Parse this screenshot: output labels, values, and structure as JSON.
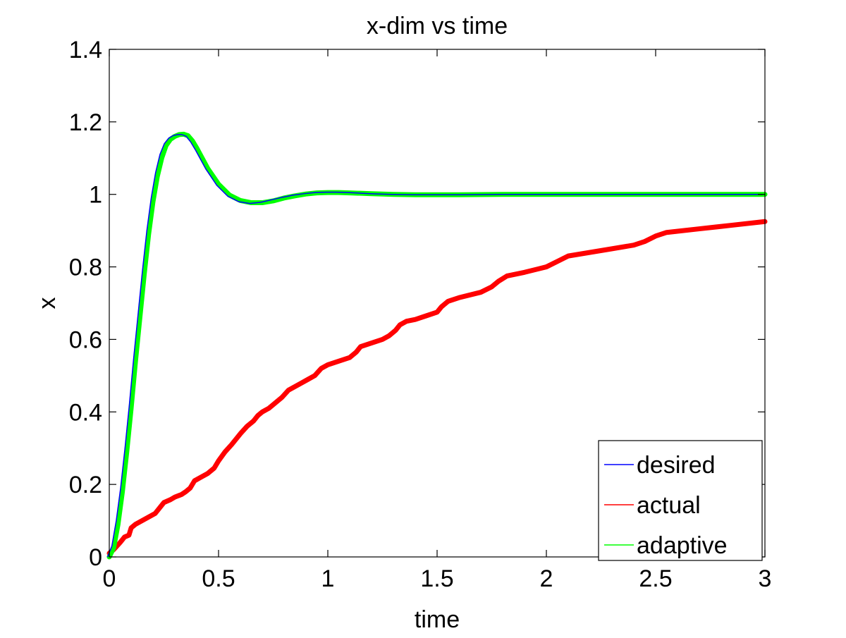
{
  "chart_data": {
    "type": "line",
    "title": "x-dim vs time",
    "xlabel": "time",
    "ylabel": "x",
    "xlim": [
      0,
      3
    ],
    "ylim": [
      0,
      1.4
    ],
    "xticks": [
      0,
      0.5,
      1,
      1.5,
      2,
      2.5,
      3
    ],
    "xtick_labels": [
      "0",
      "0.5",
      "1",
      "1.5",
      "2",
      "2.5",
      "3"
    ],
    "yticks": [
      0,
      0.2,
      0.4,
      0.6,
      0.8,
      1.0,
      1.2,
      1.4
    ],
    "ytick_labels": [
      "0",
      "0.2",
      "0.4",
      "0.6",
      "0.8",
      "1",
      "1.2",
      "1.4"
    ],
    "grid": false,
    "legend_position": "bottom-right",
    "series": [
      {
        "name": "desired",
        "color": "#0000ff",
        "points": [
          [
            0,
            0
          ],
          [
            0.02,
            0.03
          ],
          [
            0.04,
            0.1
          ],
          [
            0.06,
            0.19
          ],
          [
            0.08,
            0.3
          ],
          [
            0.1,
            0.42
          ],
          [
            0.12,
            0.55
          ],
          [
            0.14,
            0.67
          ],
          [
            0.16,
            0.79
          ],
          [
            0.18,
            0.9
          ],
          [
            0.2,
            0.99
          ],
          [
            0.22,
            1.06
          ],
          [
            0.24,
            1.11
          ],
          [
            0.26,
            1.14
          ],
          [
            0.28,
            1.155
          ],
          [
            0.3,
            1.162
          ],
          [
            0.32,
            1.165
          ],
          [
            0.34,
            1.165
          ],
          [
            0.36,
            1.16
          ],
          [
            0.38,
            1.145
          ],
          [
            0.4,
            1.125
          ],
          [
            0.45,
            1.07
          ],
          [
            0.5,
            1.025
          ],
          [
            0.55,
            0.995
          ],
          [
            0.6,
            0.98
          ],
          [
            0.65,
            0.975
          ],
          [
            0.7,
            0.978
          ],
          [
            0.75,
            0.985
          ],
          [
            0.8,
            0.992
          ],
          [
            0.85,
            0.998
          ],
          [
            0.9,
            1.002
          ],
          [
            0.95,
            1.005
          ],
          [
            1.0,
            1.006
          ],
          [
            1.05,
            1.006
          ],
          [
            1.1,
            1.005
          ],
          [
            1.2,
            1.002
          ],
          [
            1.3,
            1.0
          ],
          [
            1.4,
            0.999
          ],
          [
            1.6,
            0.999
          ],
          [
            1.8,
            1.0
          ],
          [
            2.0,
            1.0
          ],
          [
            2.5,
            1.0
          ],
          [
            3.0,
            1.0
          ]
        ]
      },
      {
        "name": "actual",
        "color": "#ff0000",
        "points": [
          [
            0,
            0.01
          ],
          [
            0.02,
            0.02
          ],
          [
            0.05,
            0.04
          ],
          [
            0.07,
            0.055
          ],
          [
            0.09,
            0.06
          ],
          [
            0.1,
            0.08
          ],
          [
            0.12,
            0.09
          ],
          [
            0.15,
            0.1
          ],
          [
            0.18,
            0.11
          ],
          [
            0.21,
            0.12
          ],
          [
            0.23,
            0.135
          ],
          [
            0.25,
            0.15
          ],
          [
            0.28,
            0.158
          ],
          [
            0.3,
            0.165
          ],
          [
            0.33,
            0.172
          ],
          [
            0.35,
            0.18
          ],
          [
            0.37,
            0.19
          ],
          [
            0.39,
            0.21
          ],
          [
            0.42,
            0.22
          ],
          [
            0.45,
            0.23
          ],
          [
            0.48,
            0.245
          ],
          [
            0.5,
            0.265
          ],
          [
            0.53,
            0.29
          ],
          [
            0.56,
            0.31
          ],
          [
            0.6,
            0.34
          ],
          [
            0.63,
            0.36
          ],
          [
            0.66,
            0.375
          ],
          [
            0.68,
            0.39
          ],
          [
            0.7,
            0.4
          ],
          [
            0.73,
            0.41
          ],
          [
            0.76,
            0.425
          ],
          [
            0.79,
            0.44
          ],
          [
            0.82,
            0.46
          ],
          [
            0.85,
            0.47
          ],
          [
            0.88,
            0.48
          ],
          [
            0.91,
            0.49
          ],
          [
            0.94,
            0.5
          ],
          [
            0.97,
            0.52
          ],
          [
            1.0,
            0.53
          ],
          [
            1.05,
            0.54
          ],
          [
            1.1,
            0.55
          ],
          [
            1.13,
            0.565
          ],
          [
            1.15,
            0.58
          ],
          [
            1.2,
            0.59
          ],
          [
            1.25,
            0.6
          ],
          [
            1.28,
            0.61
          ],
          [
            1.31,
            0.625
          ],
          [
            1.33,
            0.64
          ],
          [
            1.36,
            0.65
          ],
          [
            1.4,
            0.655
          ],
          [
            1.45,
            0.665
          ],
          [
            1.5,
            0.675
          ],
          [
            1.52,
            0.69
          ],
          [
            1.55,
            0.705
          ],
          [
            1.6,
            0.715
          ],
          [
            1.7,
            0.73
          ],
          [
            1.75,
            0.745
          ],
          [
            1.78,
            0.76
          ],
          [
            1.82,
            0.775
          ],
          [
            1.9,
            0.785
          ],
          [
            2.0,
            0.8
          ],
          [
            2.05,
            0.815
          ],
          [
            2.1,
            0.83
          ],
          [
            2.2,
            0.84
          ],
          [
            2.3,
            0.85
          ],
          [
            2.4,
            0.86
          ],
          [
            2.45,
            0.87
          ],
          [
            2.5,
            0.885
          ],
          [
            2.55,
            0.895
          ],
          [
            2.7,
            0.905
          ],
          [
            2.85,
            0.915
          ],
          [
            3.0,
            0.925
          ]
        ]
      },
      {
        "name": "adaptive",
        "color": "#00ff00",
        "points": [
          [
            0,
            0
          ],
          [
            0.02,
            0.025
          ],
          [
            0.04,
            0.09
          ],
          [
            0.06,
            0.18
          ],
          [
            0.08,
            0.29
          ],
          [
            0.1,
            0.41
          ],
          [
            0.12,
            0.54
          ],
          [
            0.14,
            0.66
          ],
          [
            0.16,
            0.78
          ],
          [
            0.18,
            0.89
          ],
          [
            0.2,
            0.98
          ],
          [
            0.22,
            1.05
          ],
          [
            0.24,
            1.1
          ],
          [
            0.26,
            1.135
          ],
          [
            0.28,
            1.152
          ],
          [
            0.3,
            1.16
          ],
          [
            0.32,
            1.165
          ],
          [
            0.34,
            1.166
          ],
          [
            0.36,
            1.162
          ],
          [
            0.38,
            1.148
          ],
          [
            0.4,
            1.128
          ],
          [
            0.45,
            1.072
          ],
          [
            0.5,
            1.028
          ],
          [
            0.55,
            0.998
          ],
          [
            0.6,
            0.983
          ],
          [
            0.65,
            0.977
          ],
          [
            0.7,
            0.977
          ],
          [
            0.75,
            0.982
          ],
          [
            0.8,
            0.99
          ],
          [
            0.85,
            0.996
          ],
          [
            0.9,
            1.001
          ],
          [
            0.95,
            1.004
          ],
          [
            1.0,
            1.005
          ],
          [
            1.05,
            1.005
          ],
          [
            1.1,
            1.004
          ],
          [
            1.2,
            1.002
          ],
          [
            1.3,
            1.0
          ],
          [
            1.4,
            0.999
          ],
          [
            1.6,
            0.999
          ],
          [
            1.8,
            1.0
          ],
          [
            2.0,
            1.0
          ],
          [
            2.5,
            1.0
          ],
          [
            3.0,
            1.0
          ]
        ]
      }
    ]
  }
}
